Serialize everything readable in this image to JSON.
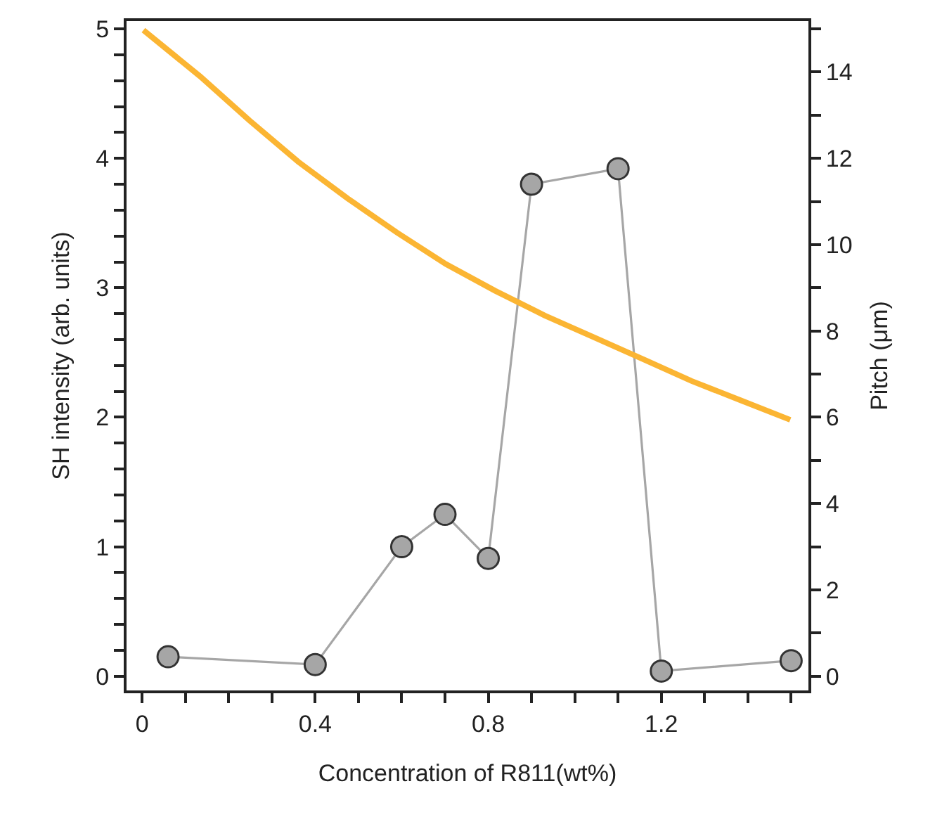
{
  "chart_data": {
    "type": "line",
    "xlabel": "Concentration of R811(wt%)",
    "ylabel": "SH intensity (arb. units)",
    "y2label": "Pitch (μm)",
    "xlim": [
      -0.036,
      1.54
    ],
    "ylim": [
      -0.11,
      5.06
    ],
    "y2lim": [
      -0.33,
      15.18
    ],
    "xticks": [
      0,
      {
        "value": 0.1,
        "label": null
      },
      {
        "value": 0.2,
        "label": null
      },
      {
        "value": 0.3,
        "label": null
      },
      0.4,
      {
        "value": 0.5,
        "label": null
      },
      {
        "value": 0.6,
        "label": null
      },
      {
        "value": 0.7,
        "label": null
      },
      0.8,
      {
        "value": 0.9,
        "label": null
      },
      {
        "value": 1.0,
        "label": null
      },
      {
        "value": 1.1,
        "label": null
      },
      1.2,
      {
        "value": 1.3,
        "label": null
      },
      {
        "value": 1.4,
        "label": null
      },
      {
        "value": 1.5,
        "label": null
      }
    ],
    "yticks": [
      0,
      {
        "value": 0.2,
        "label": null
      },
      {
        "value": 0.4,
        "label": null
      },
      {
        "value": 0.6,
        "label": null
      },
      {
        "value": 0.8,
        "label": null
      },
      1,
      {
        "value": 1.2,
        "label": null
      },
      {
        "value": 1.4,
        "label": null
      },
      {
        "value": 1.6,
        "label": null
      },
      {
        "value": 1.8,
        "label": null
      },
      2,
      {
        "value": 2.2,
        "label": null
      },
      {
        "value": 2.4,
        "label": null
      },
      {
        "value": 2.6,
        "label": null
      },
      {
        "value": 2.8,
        "label": null
      },
      3,
      {
        "value": 3.2,
        "label": null
      },
      {
        "value": 3.4,
        "label": null
      },
      {
        "value": 3.6,
        "label": null
      },
      {
        "value": 3.8,
        "label": null
      },
      4,
      {
        "value": 4.2,
        "label": null
      },
      {
        "value": 4.4,
        "label": null
      },
      {
        "value": 4.6,
        "label": null
      },
      {
        "value": 4.8,
        "label": null
      },
      5
    ],
    "y2ticks": [
      0,
      {
        "value": 1,
        "label": null
      },
      2,
      {
        "value": 3,
        "label": null
      },
      4,
      {
        "value": 5,
        "label": null
      },
      6,
      {
        "value": 7,
        "label": null
      },
      8,
      {
        "value": 9,
        "label": null
      },
      10,
      {
        "value": 11,
        "label": null
      },
      12,
      {
        "value": 13,
        "label": null
      },
      14,
      {
        "value": 15,
        "label": null
      }
    ],
    "grid": false,
    "series": [
      {
        "color": "#a6a6a6",
        "marker": "circle",
        "line_style": "solid",
        "x": [
          0.06,
          0.4,
          0.6,
          0.7,
          0.8,
          0.9,
          1.1,
          1.2,
          1.5
        ],
        "values": [
          0.15,
          0.09,
          1.0,
          1.25,
          0.91,
          3.8,
          3.92,
          0.04,
          0.12
        ]
      },
      {
        "color": "#fbb533",
        "marker": "none",
        "line_style": "solid",
        "axis": "y2",
        "x": [
          0.003,
          0.134,
          0.248,
          0.361,
          0.475,
          0.589,
          0.702,
          0.816,
          0.93,
          1.043,
          1.157,
          1.27,
          1.384,
          1.498
        ],
        "values": [
          14.97,
          13.9,
          12.88,
          11.92,
          11.07,
          10.28,
          9.55,
          8.93,
          8.36,
          7.86,
          7.35,
          6.84,
          6.39,
          5.94
        ]
      }
    ]
  }
}
